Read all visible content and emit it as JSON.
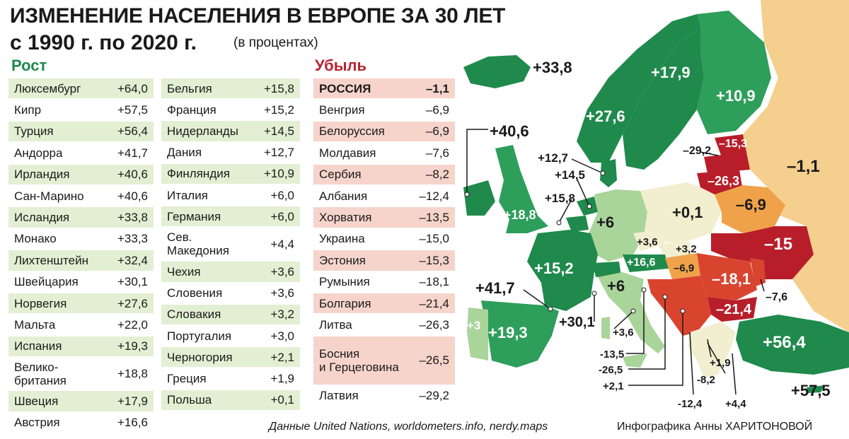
{
  "header": {
    "title_line1": "ИЗМЕНЕНИЕ НАСЕЛЕНИЯ В ЕВРОПЕ ЗА 30 ЛЕТ",
    "title_line2": "с 1990 г. по 2020 г.",
    "units": "(в процентах)"
  },
  "sections": {
    "growth": "Рост",
    "decline": "Убыль"
  },
  "chart_data": {
    "type": "table",
    "title": "ИЗМЕНЕНИЕ НАСЕЛЕНИЯ В ЕВРОПЕ ЗА 30 ЛЕТ с 1990 г. по 2020 г.",
    "unit": "(в процентах)",
    "growth_col1": [
      {
        "name": "Люксембург",
        "value": "+64,0"
      },
      {
        "name": "Кипр",
        "value": "+57,5"
      },
      {
        "name": "Турция",
        "value": "+56,4"
      },
      {
        "name": "Андорра",
        "value": "+41,7"
      },
      {
        "name": "Ирландия",
        "value": "+40,6"
      },
      {
        "name": "Сан-Марино",
        "value": "+40,6"
      },
      {
        "name": "Исландия",
        "value": "+33,8"
      },
      {
        "name": "Монако",
        "value": "+33,3"
      },
      {
        "name": "Лихтенштейн",
        "value": "+32,4"
      },
      {
        "name": "Швейцария",
        "value": "+30,1"
      },
      {
        "name": "Норвегия",
        "value": "+27,6"
      },
      {
        "name": "Мальта",
        "value": "+22,0"
      },
      {
        "name": "Испания",
        "value": "+19,3"
      },
      {
        "name": "Велико-\nбритания",
        "value": "+18,8"
      },
      {
        "name": "Швеция",
        "value": "+17,9"
      },
      {
        "name": "Австрия",
        "value": "+16,6"
      }
    ],
    "growth_col2": [
      {
        "name": "Бельгия",
        "value": "+15,8"
      },
      {
        "name": "Франция",
        "value": "+15,2"
      },
      {
        "name": "Нидерланды",
        "value": "+14,5"
      },
      {
        "name": "Дания",
        "value": "+12,7"
      },
      {
        "name": "Финляндия",
        "value": "+10,9"
      },
      {
        "name": "Италия",
        "value": "+6,0"
      },
      {
        "name": "Германия",
        "value": "+6,0"
      },
      {
        "name": "Сев.\nМакедония",
        "value": "+4,4"
      },
      {
        "name": "Чехия",
        "value": "+3,6"
      },
      {
        "name": "Словения",
        "value": "+3,6"
      },
      {
        "name": "Словакия",
        "value": "+3,2"
      },
      {
        "name": "Португалия",
        "value": "+3,0"
      },
      {
        "name": "Черногория",
        "value": "+2,1"
      },
      {
        "name": "Греция",
        "value": "+1,9"
      },
      {
        "name": "Польша",
        "value": "+0,1"
      }
    ],
    "decline": [
      {
        "name": "РОССИЯ",
        "value": "–1,1"
      },
      {
        "name": "Венгрия",
        "value": "–6,9"
      },
      {
        "name": "Белоруссия",
        "value": "–6,9"
      },
      {
        "name": "Молдавия",
        "value": "–7,6"
      },
      {
        "name": "Сербия",
        "value": "–8,2"
      },
      {
        "name": "Албания",
        "value": "–12,4"
      },
      {
        "name": "Хорватия",
        "value": "–13,5"
      },
      {
        "name": "Украина",
        "value": "–15,0"
      },
      {
        "name": "Эстония",
        "value": "–15,3"
      },
      {
        "name": "Румыния",
        "value": "–18,1"
      },
      {
        "name": "Болгария",
        "value": "–21,4"
      },
      {
        "name": "Литва",
        "value": "–26,3"
      },
      {
        "name": "Босния\nи Герцеговина",
        "value": "–26,5"
      },
      {
        "name": "Латвия",
        "value": "–29,2"
      }
    ]
  },
  "map": {
    "colors": {
      "high_growth": "#1f8a4c",
      "mid_growth": "#2e9e5b",
      "light_growth": "#a9d49a",
      "pale": "#f2eed0",
      "russia": "#f5cf8e",
      "mild_decline": "#f0a24a",
      "decline": "#d9442f",
      "strong_decline": "#b81e2a",
      "sea": "#ffffff"
    },
    "labels": {
      "iceland": "+33,8",
      "ireland": "+40,6",
      "norway": "+27,6",
      "sweden": "+17,9",
      "finland": "+10,9",
      "denmark": "+12,7",
      "netherlands": "+14,5",
      "belgium": "+15,8",
      "uk": "+18,8",
      "germany": "+6",
      "poland": "+0,1",
      "russia": "–1,1",
      "belarus": "–6,9",
      "latvia": "–29,2",
      "estonia": "–15,3",
      "lithuania": "–26,3",
      "ukraine": "–15",
      "czech": "+3,6",
      "slovakia": "+3,2",
      "austria": "+16,6",
      "hungary": "–6,9",
      "romania": "–18,1",
      "moldova": "–7,6",
      "bulgaria": "–21,4",
      "france": "+15,2",
      "switzerland": "+30,1",
      "italy": "+6",
      "slovenia": "+3,6",
      "andorra": "+41,7",
      "spain": "+19,3",
      "portugal": "+3",
      "turkey": "+56,4",
      "cyprus": "+57,5",
      "croatia": "-13,5",
      "bosnia": "-26,5",
      "montenegro": "+2,1",
      "albania": "-12,4",
      "greece": "+1,9",
      "serbia": "-8,2",
      "macedonia": "+4,4"
    }
  },
  "footer": {
    "source": "Данные United Nations, worldometers.info, nerdy.maps",
    "author": "Инфографика Анны ХАРИТОНОВОЙ"
  }
}
